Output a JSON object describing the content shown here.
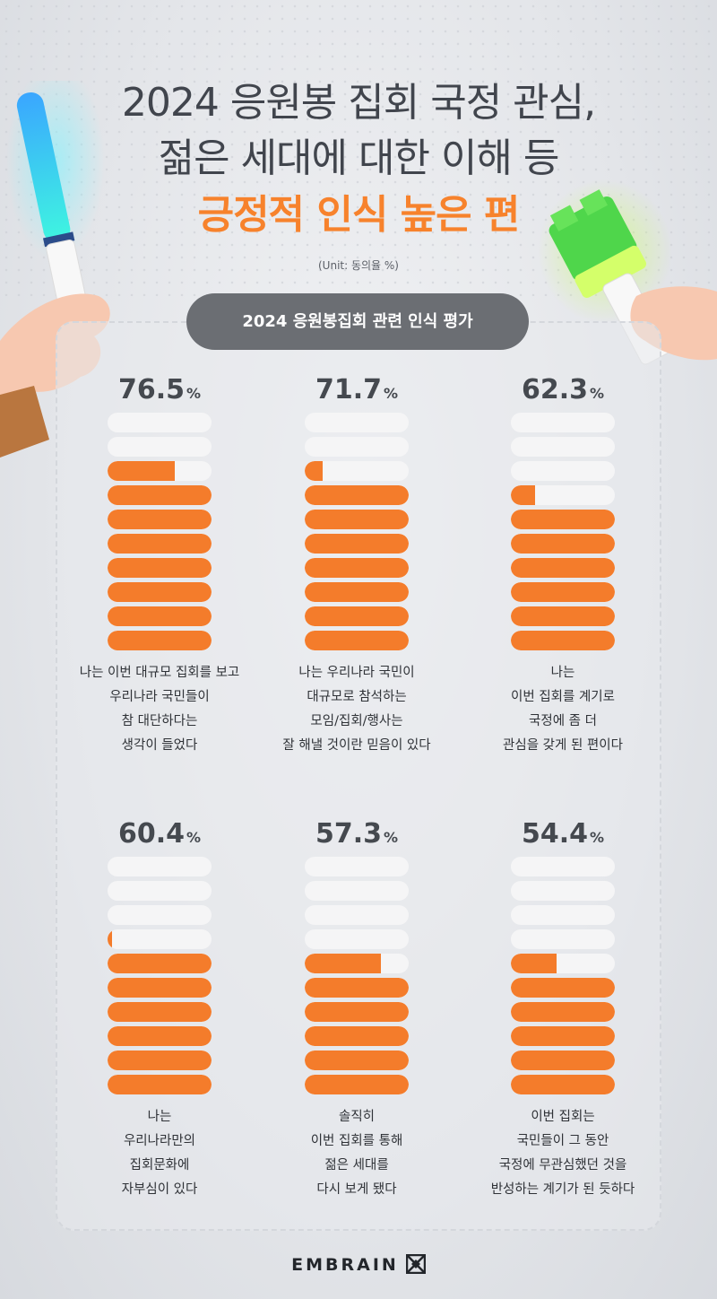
{
  "header": {
    "line1": "2024 응원봉 집회 국정 관심,",
    "line2": "젊은 세대에 대한 이해 등",
    "line3": "긍정적 인식 높은 편",
    "unit": "(Unit: 동의율 %)"
  },
  "section_title": "2024 응원봉집회 관련 인식 평가",
  "percent_sign": "%",
  "chart_data": {
    "type": "bar",
    "title": "2024 응원봉집회 관련 인식 평가",
    "unit": "%",
    "ylim": [
      0,
      100
    ],
    "colors": {
      "filled": "#f47c2b",
      "empty": "#f5f5f6",
      "accent": "#f7822c"
    },
    "items": [
      {
        "value": 76.5,
        "value_label": "76.5",
        "label": "나는 이번 대규모 집회를 보고\n우리나라 국민들이\n참 대단하다는\n생각이 들었다"
      },
      {
        "value": 71.7,
        "value_label": "71.7",
        "label": "나는 우리나라 국민이\n대규모로 참석하는\n모임/집회/행사는\n잘 해낼 것이란 믿음이 있다"
      },
      {
        "value": 62.3,
        "value_label": "62.3",
        "label": "나는\n이번 집회를 계기로\n국정에 좀 더\n관심을 갖게 된 편이다"
      },
      {
        "value": 60.4,
        "value_label": "60.4",
        "label": "나는\n우리나라만의\n집회문화에\n자부심이 있다"
      },
      {
        "value": 57.3,
        "value_label": "57.3",
        "label": "솔직히\n이번 집회를 통해\n젊은 세대를\n다시 보게 됐다"
      },
      {
        "value": 54.4,
        "value_label": "54.4",
        "label": "이번 집회는\n국민들이 그 동안\n국정에 무관심했던 것을\n반성하는 계기가 된 듯하다"
      }
    ]
  },
  "footer": {
    "brand": "EMBRAIN",
    "logo_icon": "embrain-logo-icon"
  }
}
